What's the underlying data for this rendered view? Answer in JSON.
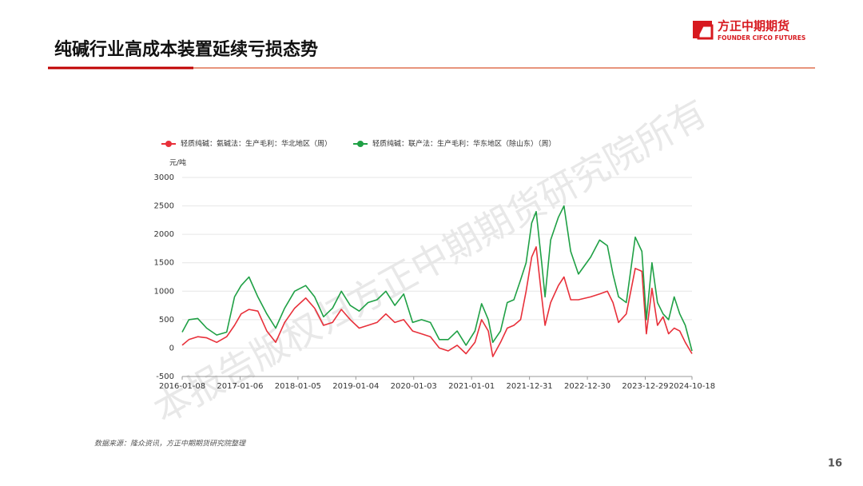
{
  "header": {
    "title": "纯碱行业高成本装置延续亏损态势",
    "logo_name": "方正中期期货",
    "logo_subtitle": "FOUNDER CIFCO FUTURES"
  },
  "chart_data": {
    "type": "line",
    "y_unit": "元/吨",
    "x": [
      "2016-01-08",
      "2016-02-19",
      "2016-04-15",
      "2016-06-10",
      "2016-08-12",
      "2016-10-14",
      "2016-12-02",
      "2017-01-13",
      "2017-03-03",
      "2017-04-28",
      "2017-06-23",
      "2017-08-18",
      "2017-10-13",
      "2017-12-15",
      "2018-02-23",
      "2018-04-20",
      "2018-06-15",
      "2018-08-10",
      "2018-10-05",
      "2018-11-30",
      "2019-01-25",
      "2019-03-22",
      "2019-05-17",
      "2019-07-12",
      "2019-09-06",
      "2019-11-01",
      "2019-12-27",
      "2020-02-21",
      "2020-04-17",
      "2020-06-12",
      "2020-08-07",
      "2020-10-02",
      "2020-11-27",
      "2021-01-22",
      "2021-03-05",
      "2021-04-16",
      "2021-05-14",
      "2021-07-02",
      "2021-08-13",
      "2021-09-24",
      "2021-11-05",
      "2021-12-10",
      "2022-01-14",
      "2022-02-11",
      "2022-03-18",
      "2022-04-08",
      "2022-05-13",
      "2022-07-01",
      "2022-08-05",
      "2022-09-16",
      "2022-11-04",
      "2023-01-20",
      "2023-03-17",
      "2023-05-05",
      "2023-06-09",
      "2023-07-14",
      "2023-09-01",
      "2023-10-27",
      "2023-12-08",
      "2024-01-05",
      "2024-02-09",
      "2024-03-15",
      "2024-04-19",
      "2024-05-24",
      "2024-06-28",
      "2024-08-02",
      "2024-09-06",
      "2024-10-18"
    ],
    "series": [
      {
        "name": "轻质纯碱：氨碱法：生产毛利：华北地区（周）",
        "color": "#e8303a",
        "values": [
          50,
          150,
          200,
          180,
          100,
          200,
          400,
          600,
          680,
          650,
          300,
          100,
          450,
          700,
          880,
          700,
          400,
          450,
          680,
          500,
          350,
          400,
          450,
          600,
          450,
          500,
          300,
          250,
          200,
          0,
          -50,
          50,
          -100,
          100,
          500,
          300,
          -150,
          100,
          350,
          400,
          500,
          1000,
          1600,
          1780,
          900,
          400,
          800,
          1100,
          1250,
          850,
          850,
          900,
          950,
          1000,
          800,
          450,
          600,
          1400,
          1350,
          250,
          1050,
          400,
          550,
          250,
          350,
          300,
          100,
          -100
        ]
      },
      {
        "name": "轻质纯碱：联产法：生产毛利：华东地区（除山东）（周）",
        "color": "#1fa045",
        "values": [
          280,
          500,
          520,
          350,
          230,
          280,
          900,
          1100,
          1250,
          900,
          600,
          350,
          700,
          1000,
          1100,
          900,
          550,
          700,
          1000,
          750,
          650,
          800,
          850,
          1000,
          750,
          950,
          450,
          500,
          450,
          150,
          150,
          300,
          50,
          300,
          780,
          500,
          100,
          300,
          800,
          850,
          1200,
          1500,
          2200,
          2400,
          1500,
          900,
          1900,
          2300,
          2500,
          1700,
          1300,
          1600,
          1900,
          1800,
          1300,
          900,
          800,
          1950,
          1700,
          500,
          1500,
          800,
          600,
          500,
          900,
          600,
          400,
          -50
        ]
      }
    ],
    "xlim": [
      "2016-01-08",
      "2024-10-18"
    ],
    "xticks": [
      "2016-01-08",
      "2017-01-06",
      "2018-01-05",
      "2019-01-04",
      "2020-01-03",
      "2021-01-01",
      "2021-12-31",
      "2022-12-30",
      "2023-12-29",
      "2024-10-18"
    ],
    "ylim": [
      -500,
      3000
    ],
    "yticks": [
      -500,
      0,
      500,
      1000,
      1500,
      2000,
      2500,
      3000
    ],
    "grid": true
  },
  "source": "数据来源：隆众资讯，方正中期期货研究院整理",
  "watermark": "本报告版权归方正中期期货研究院所有",
  "page_number": "16"
}
